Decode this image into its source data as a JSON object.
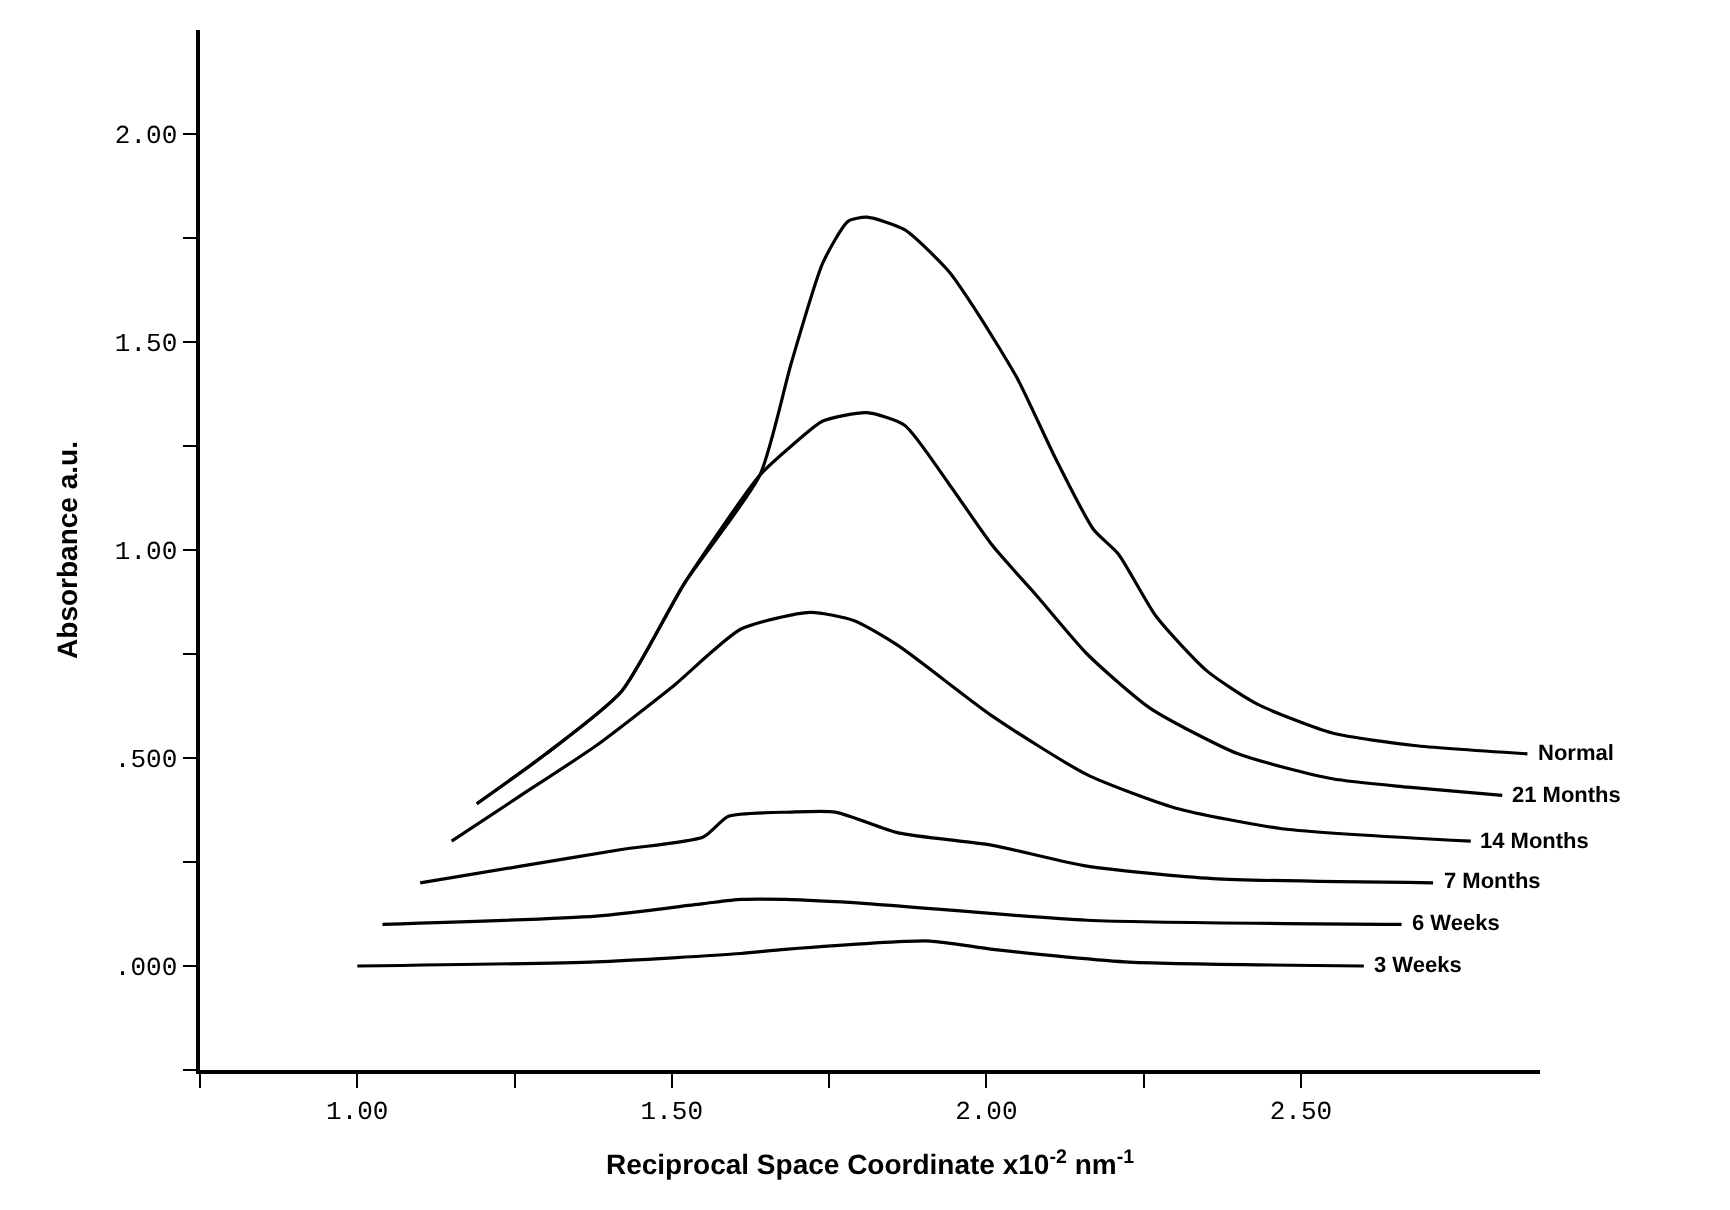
{
  "chart_data": {
    "type": "line",
    "xlabel": "Reciprocal Space Coordinate x10$^{-2}$ nm$^{-1}$",
    "ylabel": "Absorbance a.u.",
    "xlim": [
      0.75,
      2.88
    ],
    "ylim": [
      -0.25,
      2.25
    ],
    "xticks": [
      {
        "value": 0.75,
        "label": null
      },
      {
        "value": 1.0,
        "label": "1.00"
      },
      {
        "value": 1.25,
        "label": null
      },
      {
        "value": 1.5,
        "label": "1.50"
      },
      {
        "value": 1.75,
        "label": null
      },
      {
        "value": 2.0,
        "label": "2.00"
      },
      {
        "value": 2.25,
        "label": null
      },
      {
        "value": 2.5,
        "label": "2.50"
      }
    ],
    "yticks": [
      {
        "value": -0.25,
        "label": null
      },
      {
        "value": 0.0,
        "label": ".000"
      },
      {
        "value": 0.25,
        "label": null
      },
      {
        "value": 0.5,
        "label": ".500"
      },
      {
        "value": 0.75,
        "label": null
      },
      {
        "value": 1.0,
        "label": "1.00"
      },
      {
        "value": 1.25,
        "label": null
      },
      {
        "value": 1.5,
        "label": "1.50"
      },
      {
        "value": 1.75,
        "label": null
      },
      {
        "value": 2.0,
        "label": "2.00"
      }
    ],
    "legend": false,
    "marker": "none",
    "line_style": "solid",
    "series": [
      {
        "name": "Normal",
        "color": "#000000",
        "x": [
          1.19,
          1.3,
          1.42,
          1.52,
          1.64,
          1.69,
          1.74,
          1.78,
          1.81,
          1.87,
          1.94,
          1.99,
          2.05,
          2.11,
          2.17,
          2.21,
          2.27,
          2.35,
          2.43,
          2.55,
          2.68,
          2.86
        ],
        "values": [
          0.39,
          0.51,
          0.66,
          0.92,
          1.18,
          1.45,
          1.69,
          1.79,
          1.8,
          1.77,
          1.67,
          1.56,
          1.41,
          1.22,
          1.05,
          0.99,
          0.84,
          0.71,
          0.63,
          0.56,
          0.53,
          0.51
        ]
      },
      {
        "name": "21 Months",
        "color": "#000000",
        "x": [
          1.19,
          1.3,
          1.42,
          1.52,
          1.64,
          1.69,
          1.74,
          1.81,
          1.87,
          1.94,
          2.01,
          2.08,
          2.16,
          2.26,
          2.4,
          2.55,
          2.67,
          2.82
        ],
        "values": [
          0.39,
          0.51,
          0.66,
          0.92,
          1.18,
          1.25,
          1.31,
          1.33,
          1.3,
          1.16,
          1.01,
          0.89,
          0.75,
          0.62,
          0.51,
          0.45,
          0.43,
          0.41
        ]
      },
      {
        "name": "14 Months",
        "color": "#000000",
        "x": [
          1.15,
          1.26,
          1.38,
          1.5,
          1.61,
          1.72,
          1.79,
          1.86,
          2.01,
          2.16,
          2.3,
          2.47,
          2.77
        ],
        "values": [
          0.3,
          0.41,
          0.53,
          0.67,
          0.81,
          0.85,
          0.83,
          0.77,
          0.6,
          0.46,
          0.38,
          0.33,
          0.3
        ]
      },
      {
        "name": "7 Months",
        "color": "#000000",
        "x": [
          1.1,
          1.26,
          1.42,
          1.55,
          1.59,
          1.69,
          1.76,
          1.86,
          2.01,
          2.16,
          2.36,
          2.71
        ],
        "values": [
          0.2,
          0.24,
          0.28,
          0.31,
          0.36,
          0.37,
          0.37,
          0.32,
          0.29,
          0.24,
          0.21,
          0.2
        ]
      },
      {
        "name": "6 Weeks",
        "color": "#000000",
        "x": [
          1.04,
          1.38,
          1.55,
          1.61,
          1.68,
          1.81,
          2.16,
          2.66
        ],
        "values": [
          0.1,
          0.12,
          0.15,
          0.16,
          0.16,
          0.15,
          0.11,
          0.1
        ]
      },
      {
        "name": "3 Weeks",
        "color": "#000000",
        "x": [
          1.0,
          1.38,
          1.61,
          1.68,
          1.91,
          2.01,
          2.22,
          2.6
        ],
        "values": [
          0.0,
          0.01,
          0.03,
          0.04,
          0.06,
          0.04,
          0.01,
          0.0
        ]
      }
    ]
  }
}
